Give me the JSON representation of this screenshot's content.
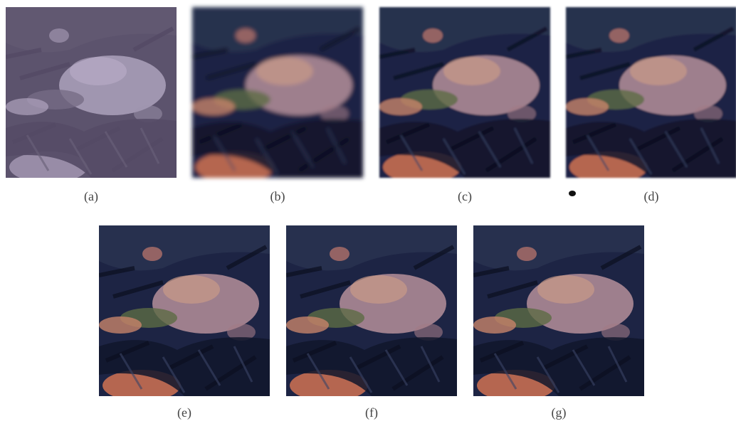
{
  "panels": [
    {
      "label": "(a)"
    },
    {
      "label": "(b)"
    },
    {
      "label": "(c)"
    },
    {
      "label": "(d)"
    },
    {
      "label": "(e)"
    },
    {
      "label": "(f)"
    },
    {
      "label": "(g)"
    }
  ]
}
